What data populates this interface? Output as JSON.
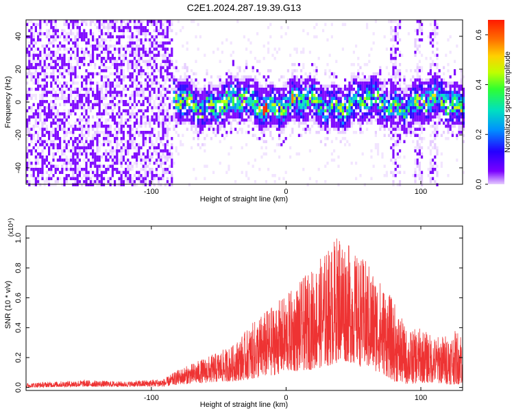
{
  "title": "C2E1.2024.287.19.39.G13",
  "chart_data": [
    {
      "type": "heatmap",
      "xlabel": "Height of straight line (km)",
      "ylabel": "Frequency (Hz)",
      "xlim": [
        -193,
        131
      ],
      "ylim": [
        -50,
        50
      ],
      "xticks": [
        -100,
        0,
        100
      ],
      "yticks": [
        -40,
        -20,
        0,
        20,
        40
      ],
      "colorbar": {
        "label": "Normalized spectral amplitude",
        "range": [
          0.0,
          0.66
        ],
        "ticks": [
          0.0,
          0.2,
          0.4,
          0.6
        ],
        "colors": [
          "#e6ccff",
          "#7a00ff",
          "#2400ff",
          "#0090ff",
          "#00e0c0",
          "#30ff30",
          "#c0ff00",
          "#ffd000",
          "#ff7000",
          "#ff1a00"
        ]
      },
      "features": [
        {
          "x_range": [
            -193,
            -85
          ],
          "description": "broadband noise",
          "amplitude": 0.08
        },
        {
          "x_range": [
            -85,
            131
          ],
          "center_frequency": 0,
          "bandwidth": 14,
          "peak_amplitude": 0.62,
          "peak_x": -16
        }
      ]
    },
    {
      "type": "line",
      "xlabel": "Height of straight line (km)",
      "ylabel": "SNR (10 * v/v)",
      "y_multiplier": "(x10⁴)",
      "xlim": [
        -193,
        131
      ],
      "ylim": [
        -0.02,
        1.08
      ],
      "xticks": [
        -100,
        0,
        100
      ],
      "yticks": [
        0.0,
        0.2,
        0.4,
        0.6,
        0.8,
        1.0
      ],
      "color": "#ee3333",
      "envelope": {
        "x": [
          -193,
          -150,
          -120,
          -90,
          -80,
          -60,
          -40,
          -20,
          0,
          20,
          35,
          40,
          50,
          60,
          70,
          80,
          90,
          100,
          110,
          120,
          131
        ],
        "max": [
          0.03,
          0.05,
          0.04,
          0.06,
          0.12,
          0.2,
          0.28,
          0.48,
          0.62,
          0.8,
          0.98,
          1.07,
          0.9,
          0.85,
          0.72,
          0.58,
          0.38,
          0.4,
          0.34,
          0.36,
          0.4
        ],
        "min": [
          0.0,
          0.005,
          0.005,
          0.005,
          0.02,
          0.03,
          0.04,
          0.06,
          0.1,
          0.12,
          0.15,
          0.18,
          0.16,
          0.12,
          0.1,
          0.04,
          0.02,
          0.03,
          0.03,
          0.02,
          0.02
        ]
      }
    }
  ]
}
